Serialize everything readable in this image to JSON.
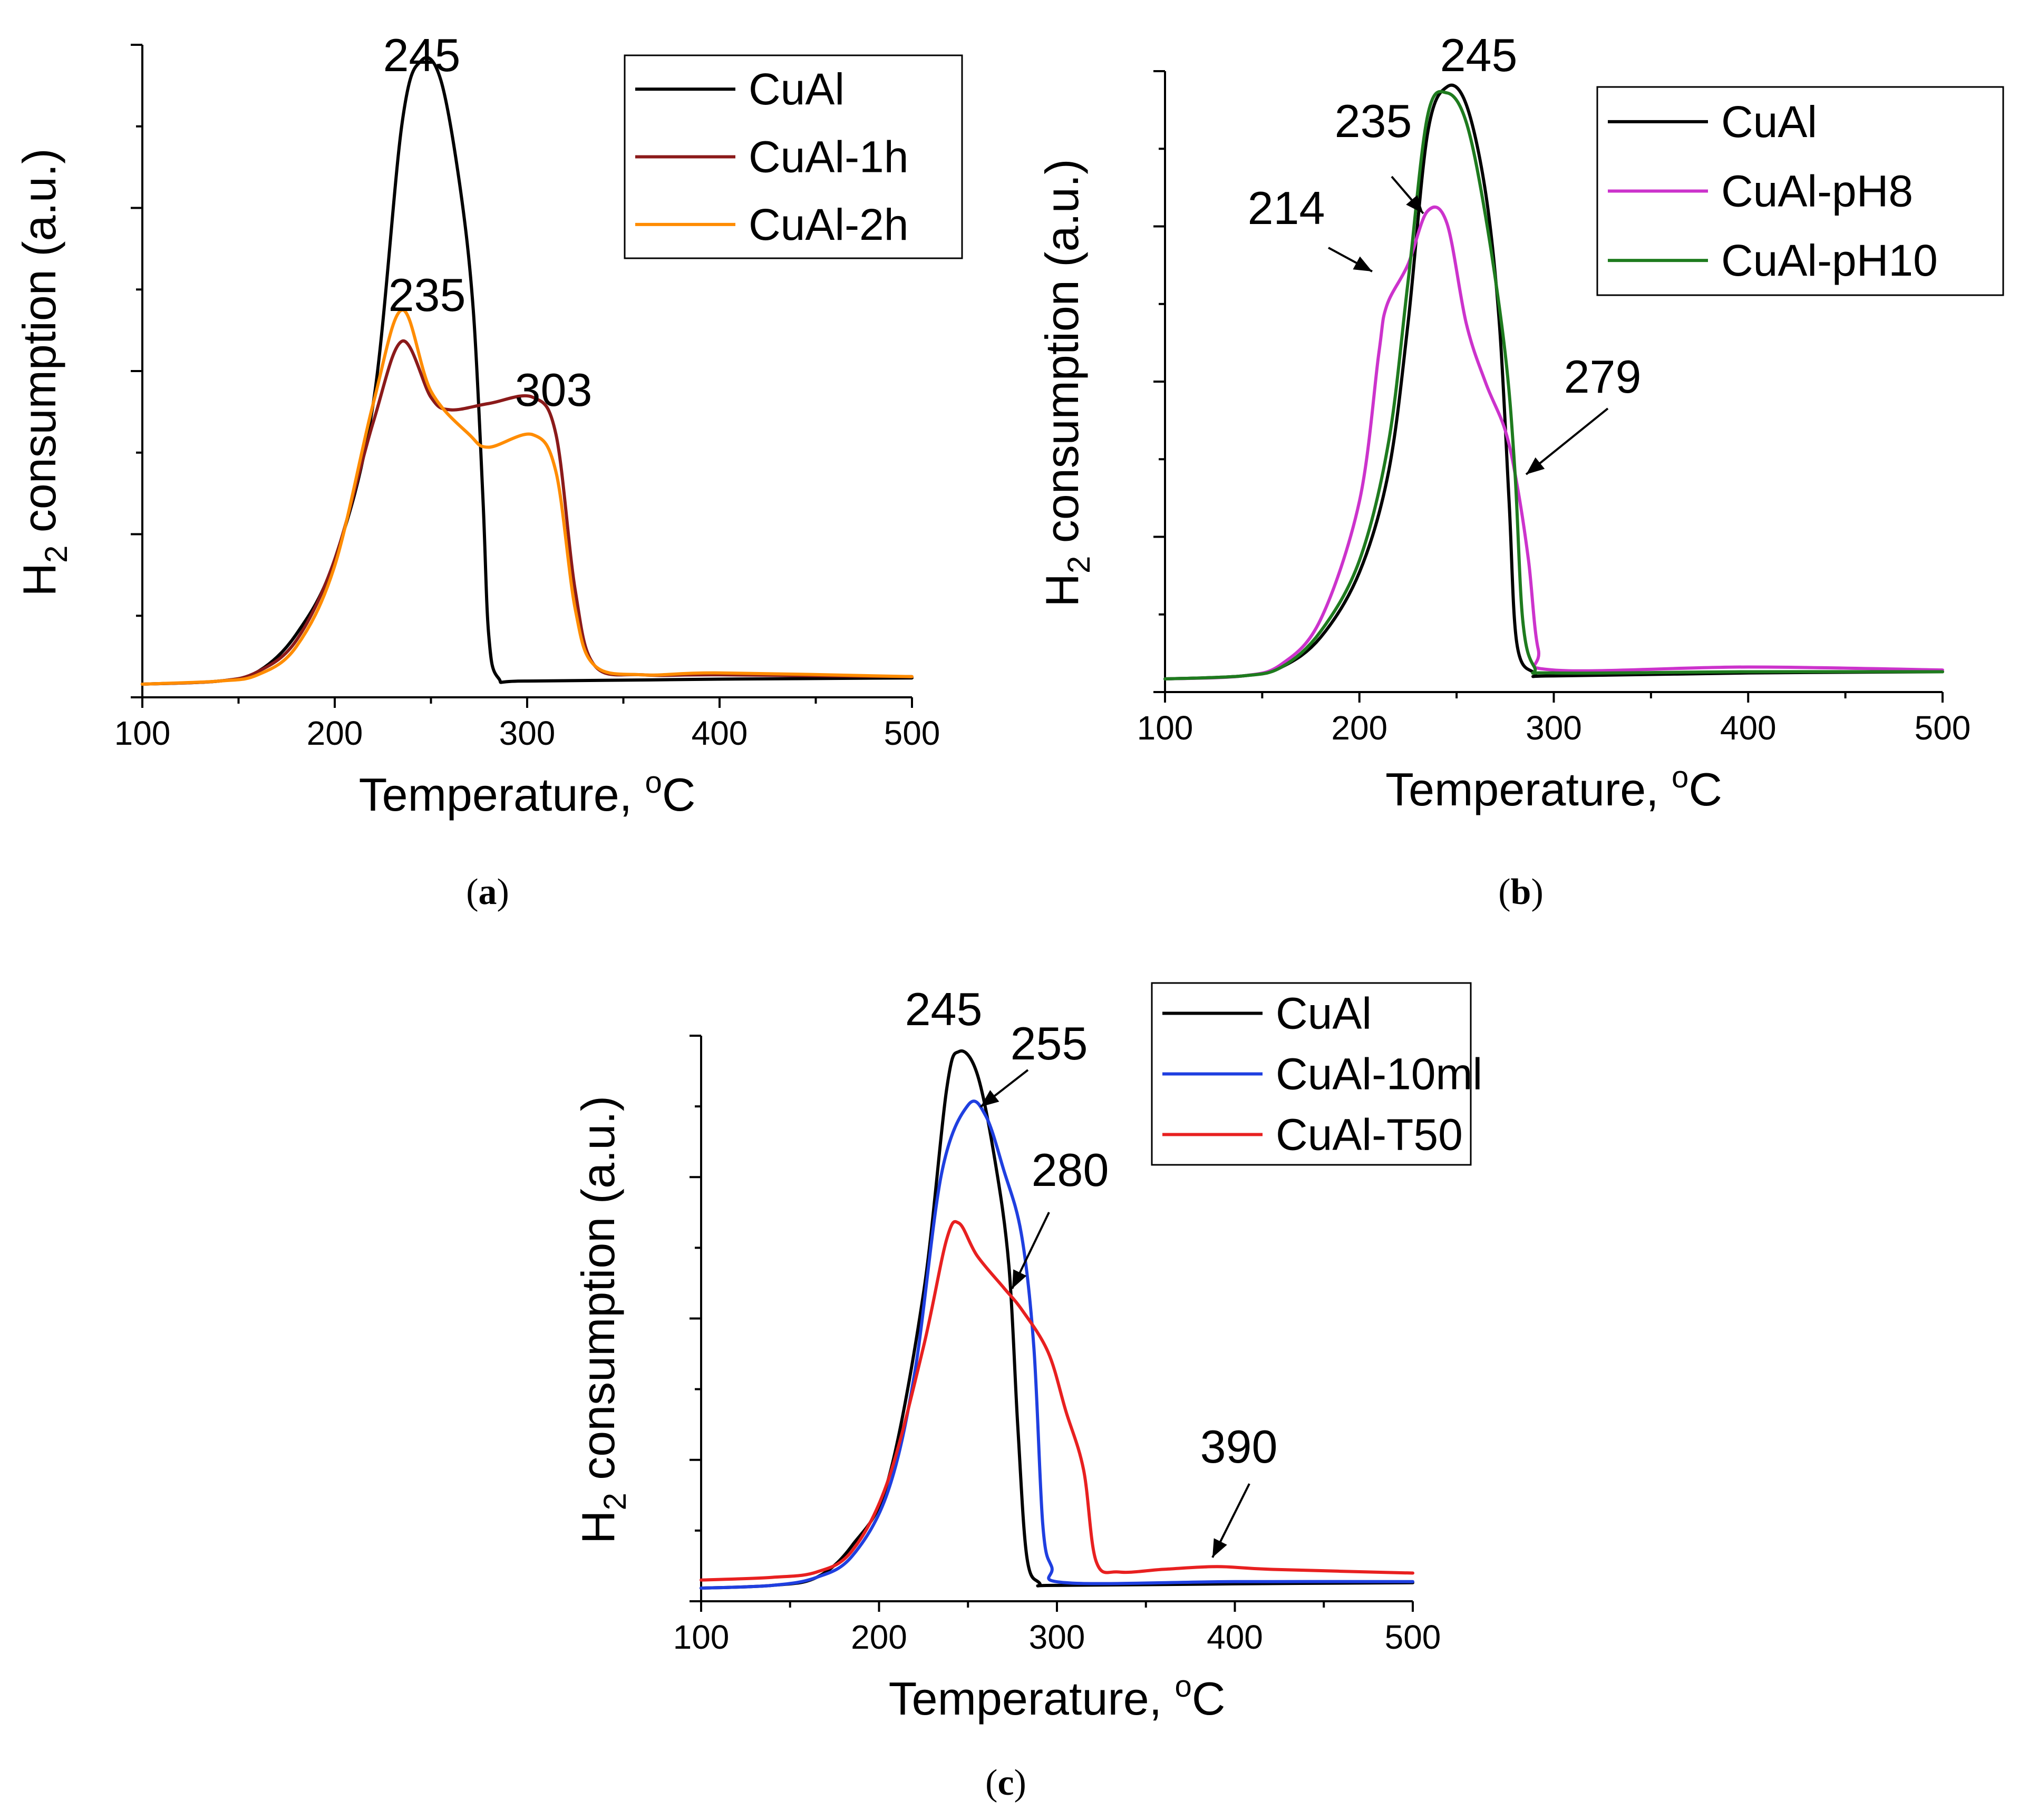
{
  "chart_data": [
    {
      "id": "a",
      "type": "line",
      "panel_label": "a",
      "xlabel_text": "Temperature, ",
      "xlabel_unit_sup": "o",
      "xlabel_unit": "C",
      "ylabel_main": "H",
      "ylabel_sub": "2",
      "ylabel_rest": " consumption (a.u.)",
      "xlim": [
        100,
        500
      ],
      "ylim": [
        0,
        1.0
      ],
      "xticks": [
        100,
        200,
        300,
        400,
        500
      ],
      "legend_position": "top-right",
      "series": [
        {
          "name": "CuAl",
          "color": "#000000",
          "points": [
            [
              100,
              0.0
            ],
            [
              140,
              0.005
            ],
            [
              160,
              0.02
            ],
            [
              180,
              0.08
            ],
            [
              200,
              0.2
            ],
            [
              220,
              0.45
            ],
            [
              235,
              0.9
            ],
            [
              245,
              1.0
            ],
            [
              255,
              0.97
            ],
            [
              265,
              0.8
            ],
            [
              272,
              0.6
            ],
            [
              277,
              0.3
            ],
            [
              280,
              0.08
            ],
            [
              285,
              0.01
            ],
            [
              300,
              0.005
            ],
            [
              400,
              0.008
            ],
            [
              500,
              0.01
            ]
          ]
        },
        {
          "name": "CuAl-1h",
          "color": "#8B1A1A",
          "points": [
            [
              100,
              0.0
            ],
            [
              140,
              0.005
            ],
            [
              160,
              0.02
            ],
            [
              180,
              0.07
            ],
            [
              200,
              0.2
            ],
            [
              220,
              0.42
            ],
            [
              235,
              0.55
            ],
            [
              250,
              0.46
            ],
            [
              260,
              0.44
            ],
            [
              280,
              0.45
            ],
            [
              303,
              0.46
            ],
            [
              315,
              0.4
            ],
            [
              325,
              0.15
            ],
            [
              335,
              0.03
            ],
            [
              360,
              0.015
            ],
            [
              400,
              0.015
            ],
            [
              500,
              0.012
            ]
          ]
        },
        {
          "name": "CuAl-2h",
          "color": "#FF8C00",
          "points": [
            [
              100,
              0.0
            ],
            [
              140,
              0.005
            ],
            [
              160,
              0.015
            ],
            [
              180,
              0.06
            ],
            [
              200,
              0.19
            ],
            [
              220,
              0.45
            ],
            [
              235,
              0.6
            ],
            [
              250,
              0.47
            ],
            [
              270,
              0.4
            ],
            [
              280,
              0.38
            ],
            [
              303,
              0.4
            ],
            [
              315,
              0.34
            ],
            [
              325,
              0.12
            ],
            [
              335,
              0.03
            ],
            [
              360,
              0.015
            ],
            [
              400,
              0.018
            ],
            [
              500,
              0.012
            ]
          ]
        }
      ],
      "annotations": [
        {
          "text": "245",
          "x": 245,
          "y": 1.0,
          "arrow": false
        },
        {
          "text": "235",
          "x": 235,
          "y": 0.6,
          "arrow": false
        },
        {
          "text": "303",
          "x": 303,
          "y": 0.46,
          "arrow": false
        }
      ]
    },
    {
      "id": "b",
      "type": "line",
      "panel_label": "b",
      "xlabel_text": "Temperature, ",
      "xlabel_unit_sup": "o",
      "xlabel_unit": "C",
      "ylabel_main": "H",
      "ylabel_sub": "2",
      "ylabel_rest": " consumption (a.u.)",
      "xlim": [
        100,
        500
      ],
      "ylim": [
        0,
        1.0
      ],
      "xticks": [
        100,
        200,
        300,
        400,
        500
      ],
      "legend_position": "top-right",
      "series": [
        {
          "name": "CuAl",
          "color": "#000000",
          "points": [
            [
              100,
              0.0
            ],
            [
              140,
              0.005
            ],
            [
              160,
              0.02
            ],
            [
              180,
              0.07
            ],
            [
              200,
              0.18
            ],
            [
              215,
              0.35
            ],
            [
              225,
              0.6
            ],
            [
              235,
              0.92
            ],
            [
              245,
              1.0
            ],
            [
              255,
              0.97
            ],
            [
              265,
              0.82
            ],
            [
              272,
              0.6
            ],
            [
              277,
              0.3
            ],
            [
              281,
              0.06
            ],
            [
              290,
              0.01
            ],
            [
              300,
              0.005
            ],
            [
              400,
              0.01
            ],
            [
              500,
              0.012
            ]
          ]
        },
        {
          "name": "CuAl-pH8",
          "color": "#CC33CC",
          "points": [
            [
              100,
              0.0
            ],
            [
              140,
              0.005
            ],
            [
              160,
              0.025
            ],
            [
              180,
              0.1
            ],
            [
              200,
              0.3
            ],
            [
              210,
              0.55
            ],
            [
              214,
              0.63
            ],
            [
              225,
              0.7
            ],
            [
              235,
              0.79
            ],
            [
              245,
              0.77
            ],
            [
              255,
              0.6
            ],
            [
              265,
              0.5
            ],
            [
              275,
              0.42
            ],
            [
              281,
              0.33
            ],
            [
              287,
              0.2
            ],
            [
              292,
              0.05
            ],
            [
              300,
              0.015
            ],
            [
              400,
              0.02
            ],
            [
              500,
              0.015
            ]
          ]
        },
        {
          "name": "CuAl-pH10",
          "color": "#1E7B1E",
          "points": [
            [
              100,
              0.0
            ],
            [
              140,
              0.005
            ],
            [
              160,
              0.02
            ],
            [
              180,
              0.08
            ],
            [
              200,
              0.2
            ],
            [
              215,
              0.4
            ],
            [
              225,
              0.67
            ],
            [
              235,
              0.95
            ],
            [
              245,
              0.99
            ],
            [
              255,
              0.94
            ],
            [
              265,
              0.78
            ],
            [
              275,
              0.55
            ],
            [
              280,
              0.35
            ],
            [
              284,
              0.1
            ],
            [
              290,
              0.02
            ],
            [
              300,
              0.01
            ],
            [
              400,
              0.012
            ],
            [
              500,
              0.012
            ]
          ]
        }
      ],
      "annotations": [
        {
          "text": "245",
          "x": 245,
          "y": 1.0,
          "arrow": false
        },
        {
          "text": "235",
          "x": 235,
          "y": 0.79,
          "arrow": true
        },
        {
          "text": "214",
          "x": 214,
          "y": 0.63,
          "arrow": true
        },
        {
          "text": "279",
          "x": 279,
          "y": 0.36,
          "arrow": true
        }
      ]
    },
    {
      "id": "c",
      "type": "line",
      "panel_label": "c",
      "xlabel_text": "Temperature, ",
      "xlabel_unit_sup": "o",
      "xlabel_unit": "C",
      "ylabel_main": "H",
      "ylabel_sub": "2",
      "ylabel_rest": " consumption (a.u.)",
      "xlim": [
        100,
        500
      ],
      "ylim": [
        0,
        1.0
      ],
      "xticks": [
        100,
        200,
        300,
        400,
        500
      ],
      "legend_position": "top-right",
      "series": [
        {
          "name": "CuAl",
          "color": "#000000",
          "points": [
            [
              100,
              0.0
            ],
            [
              140,
              0.005
            ],
            [
              165,
              0.02
            ],
            [
              185,
              0.08
            ],
            [
              205,
              0.2
            ],
            [
              225,
              0.55
            ],
            [
              238,
              0.93
            ],
            [
              245,
              1.0
            ],
            [
              255,
              0.96
            ],
            [
              265,
              0.8
            ],
            [
              273,
              0.6
            ],
            [
              278,
              0.3
            ],
            [
              283,
              0.06
            ],
            [
              290,
              0.01
            ],
            [
              300,
              0.005
            ],
            [
              400,
              0.008
            ],
            [
              500,
              0.01
            ]
          ]
        },
        {
          "name": "CuAl-10ml",
          "color": "#1F3FE0",
          "points": [
            [
              100,
              0.0
            ],
            [
              140,
              0.005
            ],
            [
              165,
              0.02
            ],
            [
              185,
              0.06
            ],
            [
              205,
              0.18
            ],
            [
              220,
              0.4
            ],
            [
              235,
              0.77
            ],
            [
              250,
              0.9
            ],
            [
              260,
              0.88
            ],
            [
              270,
              0.78
            ],
            [
              280,
              0.66
            ],
            [
              287,
              0.45
            ],
            [
              292,
              0.12
            ],
            [
              297,
              0.04
            ],
            [
              305,
              0.01
            ],
            [
              400,
              0.012
            ],
            [
              500,
              0.012
            ]
          ]
        },
        {
          "name": "CuAl-T50",
          "color": "#E82020",
          "points": [
            [
              100,
              0.015
            ],
            [
              140,
              0.02
            ],
            [
              165,
              0.03
            ],
            [
              185,
              0.07
            ],
            [
              205,
              0.2
            ],
            [
              225,
              0.45
            ],
            [
              238,
              0.65
            ],
            [
              245,
              0.68
            ],
            [
              255,
              0.62
            ],
            [
              270,
              0.56
            ],
            [
              280,
              0.52
            ],
            [
              295,
              0.44
            ],
            [
              305,
              0.33
            ],
            [
              315,
              0.22
            ],
            [
              322,
              0.05
            ],
            [
              335,
              0.03
            ],
            [
              360,
              0.035
            ],
            [
              390,
              0.04
            ],
            [
              420,
              0.035
            ],
            [
              500,
              0.028
            ]
          ]
        }
      ],
      "annotations": [
        {
          "text": "245",
          "x": 245,
          "y": 1.0,
          "arrow": false
        },
        {
          "text": "255",
          "x": 255,
          "y": 0.9,
          "arrow": true
        },
        {
          "text": "280",
          "x": 280,
          "y": 0.52,
          "arrow": true
        },
        {
          "text": "390",
          "x": 390,
          "y": 0.04,
          "arrow": true
        }
      ]
    }
  ]
}
